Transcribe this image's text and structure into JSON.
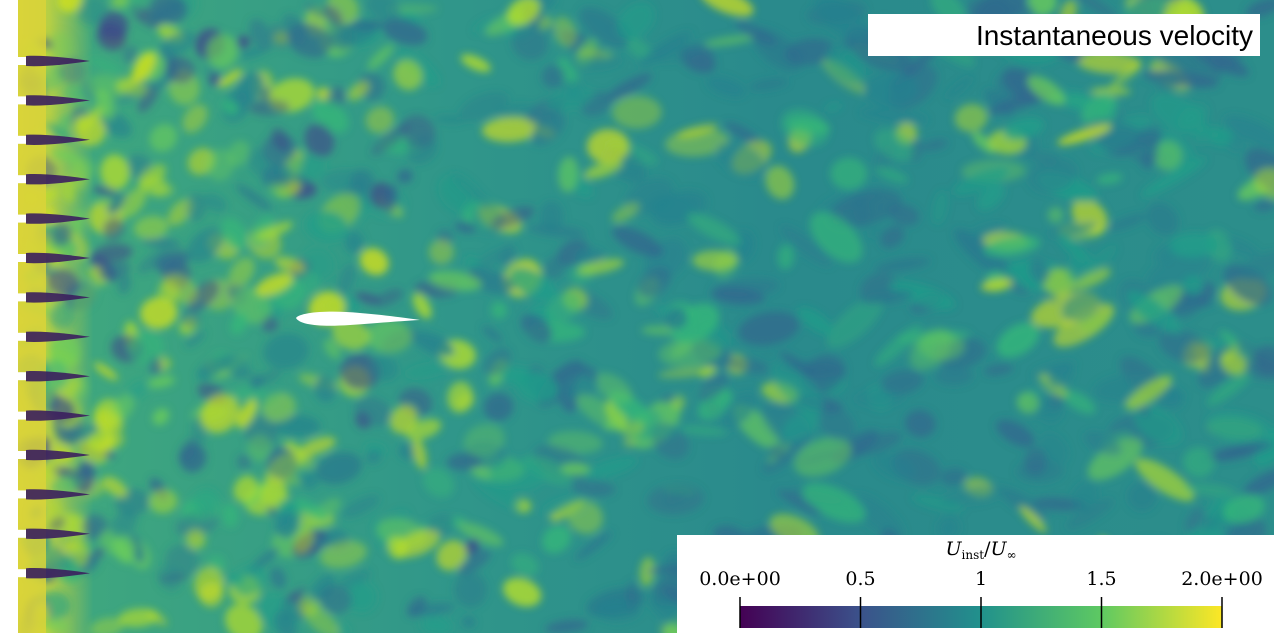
{
  "title": "Instantaneous velocity",
  "colorbar": {
    "label": {
      "numerator": "U",
      "numerator_sub": "inst",
      "separator": "/",
      "denominator": "U",
      "denominator_sub": "∞"
    },
    "lim": [
      0,
      2
    ],
    "ticks": [
      {
        "value": 0,
        "label": "0.0e+00"
      },
      0.5,
      1,
      1.5,
      {
        "value": 2,
        "label": "2.0e+00"
      }
    ],
    "colormap": [
      "#440154",
      "#3b528b",
      "#21918c",
      "#5ec962",
      "#fde725"
    ]
  }
}
